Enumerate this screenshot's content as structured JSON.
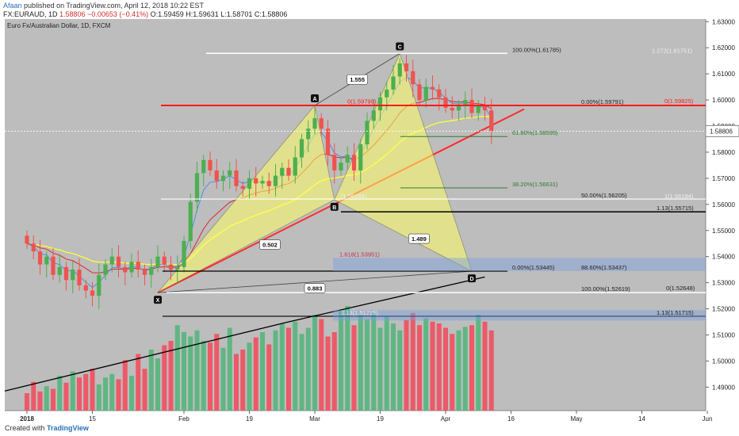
{
  "header": {
    "author": "Afaan",
    "published_text": "published on TradingView.com, April 12, 2018 10:22 EST"
  },
  "symbol_line": {
    "symbol": "FX:EURAUD, 1D",
    "last": "1.58806",
    "change": "−0.00653 (−0.41%)",
    "open": "O:1.59459",
    "high": "H:1.59631",
    "low": "L:1.58701",
    "close": "C:1.58806"
  },
  "chart_title": "Euro Fx/Australian Dollar, 1D, FXCM",
  "footer": {
    "created_with": "Created with",
    "brand": "TradingView"
  },
  "colors": {
    "background": "#bdbdbd",
    "pattern_fill": "#ffff66",
    "ema_short": "#4a90e2",
    "ema_mid": "#d9282b",
    "ema_50": "#ffff33",
    "ema_200": "#000000",
    "bull_candle": "#4caf50",
    "bear_candle": "#ef5350",
    "vol_bull": "#5ab57e",
    "vol_bear": "#ef5363"
  },
  "chart_data": {
    "type": "candlestick",
    "ylim": [
      1.481,
      1.631
    ],
    "y_ticks": [
      "1.63000",
      "1.62000",
      "1.61000",
      "1.60000",
      "1.59000",
      "1.58000",
      "1.57000",
      "1.56000",
      "1.55000",
      "1.54000",
      "1.53000",
      "1.52000",
      "1.51000",
      "1.50000",
      "1.49000"
    ],
    "current_price_label": "1.58806",
    "current_price": 1.58806,
    "x_labels": [
      {
        "label": "2018",
        "bar": 0
      },
      {
        "label": "15",
        "bar": 10
      },
      {
        "label": "Feb",
        "bar": 24
      },
      {
        "label": "19",
        "bar": 34
      },
      {
        "label": "Mar",
        "bar": 44
      },
      {
        "label": "19",
        "bar": 54
      },
      {
        "label": "Apr",
        "bar": 64
      },
      {
        "label": "16",
        "bar": 74
      },
      {
        "label": "May",
        "bar": 84
      },
      {
        "label": "14",
        "bar": 94
      },
      {
        "label": "Jun",
        "bar": 104
      }
    ],
    "candles_close": [
      1.545,
      1.542,
      1.537,
      1.54,
      1.533,
      1.536,
      1.531,
      1.535,
      1.529,
      1.527,
      1.525,
      1.533,
      1.537,
      1.54,
      1.536,
      1.534,
      1.538,
      1.535,
      1.533,
      1.536,
      1.54,
      1.537,
      1.535,
      1.536,
      1.546,
      1.561,
      1.572,
      1.577,
      1.573,
      1.569,
      1.571,
      1.573,
      1.567,
      1.566,
      1.57,
      1.568,
      1.569,
      1.567,
      1.571,
      1.574,
      1.571,
      1.578,
      1.585,
      1.589,
      1.593,
      1.589,
      1.579,
      1.573,
      1.576,
      1.579,
      1.573,
      1.583,
      1.592,
      1.596,
      1.601,
      1.604,
      1.609,
      1.614,
      1.611,
      1.606,
      1.6,
      1.605,
      1.604,
      1.601,
      1.597,
      1.596,
      1.598,
      1.6,
      1.595,
      1.598,
      1.596,
      1.588
    ],
    "volume": [
      20,
      33,
      22,
      28,
      25,
      40,
      32,
      45,
      38,
      42,
      48,
      30,
      38,
      42,
      36,
      58,
      40,
      65,
      48,
      70,
      60,
      75,
      80,
      98,
      90,
      85,
      92,
      80,
      78,
      88,
      72,
      95,
      65,
      70,
      78,
      84,
      90,
      76,
      92,
      100,
      95,
      102,
      88,
      95,
      110,
      105,
      85,
      90,
      115,
      120,
      98,
      110,
      105,
      112,
      95,
      108,
      100,
      92,
      104,
      112,
      98,
      106,
      102,
      100,
      95,
      88,
      92,
      96,
      98,
      110,
      102,
      92
    ],
    "fib_levels": [
      {
        "label": "100.00%(1.61785)",
        "value": 1.61785
      },
      {
        "label": "1.272(1.61751)",
        "value": 1.61751
      },
      {
        "label": "0.00%(1.59791)",
        "value": 1.59791
      },
      {
        "label": "0(1.59825)",
        "value": 1.59825
      },
      {
        "label": "0(1.59799)",
        "value": 1.59799
      },
      {
        "label": "61.80%(1.58599)",
        "value": 1.58599
      },
      {
        "label": "38.20%(1.56631)",
        "value": 1.56631
      },
      {
        "label": "50.00%(1.56205)",
        "value": 1.56205
      },
      {
        "label": "1(1.56184)",
        "value": 1.56184
      },
      {
        "label": "(1.56184)",
        "value": 1.56184
      },
      {
        "label": "1.13(1.55715)",
        "value": 1.55715
      },
      {
        "label": "1.618(1.53951)",
        "value": 1.53951
      },
      {
        "label": "0.00%(1.53445)",
        "value": 1.53445
      },
      {
        "label": "88.60%(1.53437)",
        "value": 1.53437
      },
      {
        "label": "100.00%(1.52619)",
        "value": 1.52619
      },
      {
        "label": "0(1.52648)",
        "value": 1.52648
      },
      {
        "label": "1.13(1.51715)",
        "value": 1.51715
      },
      {
        "label": "1.13(1.51715)",
        "value": 1.51715
      }
    ],
    "pattern_points": [
      {
        "label": "X",
        "bar": 20,
        "value": 1.5262
      },
      {
        "label": "A",
        "bar": 44,
        "value": 1.5979
      },
      {
        "label": "B",
        "bar": 47,
        "value": 1.5618
      },
      {
        "label": "C",
        "bar": 57,
        "value": 1.6178
      },
      {
        "label": "D",
        "bar": 68,
        "value": 1.5344
      }
    ],
    "ratios": [
      {
        "label": "1.555"
      },
      {
        "label": "0.502"
      },
      {
        "label": "1.489"
      },
      {
        "label": "0.883"
      }
    ]
  }
}
